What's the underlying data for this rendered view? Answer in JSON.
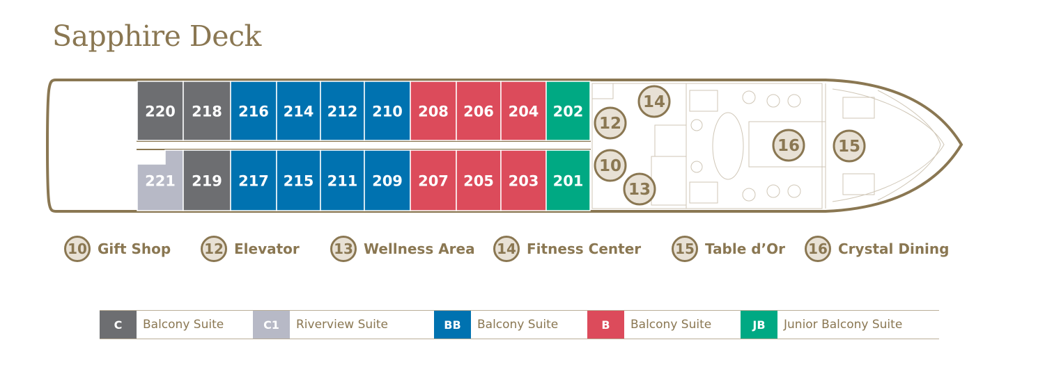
{
  "deck": {
    "title": "Sapphire Deck"
  },
  "colors": {
    "C": "#6d6e71",
    "C1": "#b7b9c6",
    "BB": "#0072b0",
    "B": "#dc4b5b",
    "JB": "#00a983",
    "accent": "#8a7752",
    "badge_fill": "#e8e1d5"
  },
  "cabins": {
    "top": [
      {
        "num": "220",
        "cat": "C"
      },
      {
        "num": "218",
        "cat": "C"
      },
      {
        "num": "216",
        "cat": "BB"
      },
      {
        "num": "214",
        "cat": "BB"
      },
      {
        "num": "212",
        "cat": "BB"
      },
      {
        "num": "210",
        "cat": "BB"
      },
      {
        "num": "208",
        "cat": "B"
      },
      {
        "num": "206",
        "cat": "B"
      },
      {
        "num": "204",
        "cat": "B"
      },
      {
        "num": "202",
        "cat": "JB"
      }
    ],
    "bottom": [
      {
        "num": "221",
        "cat": "C1"
      },
      {
        "num": "219",
        "cat": "C"
      },
      {
        "num": "217",
        "cat": "BB"
      },
      {
        "num": "215",
        "cat": "BB"
      },
      {
        "num": "211",
        "cat": "BB"
      },
      {
        "num": "209",
        "cat": "BB"
      },
      {
        "num": "207",
        "cat": "B"
      },
      {
        "num": "205",
        "cat": "B"
      },
      {
        "num": "203",
        "cat": "B"
      },
      {
        "num": "201",
        "cat": "JB"
      }
    ]
  },
  "map_markers": [
    "14",
    "12",
    "10",
    "13",
    "16",
    "15"
  ],
  "amenities": [
    {
      "num": "10",
      "label": "Gift Shop"
    },
    {
      "num": "12",
      "label": "Elevator"
    },
    {
      "num": "13",
      "label": "Wellness Area"
    },
    {
      "num": "14",
      "label": "Fitness Center"
    },
    {
      "num": "15",
      "label": "Table d’Or"
    },
    {
      "num": "16",
      "label": "Crystal Dining"
    }
  ],
  "legend": [
    {
      "code": "C",
      "label": "Balcony Suite"
    },
    {
      "code": "C1",
      "label": "Riverview Suite"
    },
    {
      "code": "BB",
      "label": "Balcony Suite"
    },
    {
      "code": "B",
      "label": "Balcony Suite"
    },
    {
      "code": "JB",
      "label": "Junior Balcony Suite"
    }
  ]
}
